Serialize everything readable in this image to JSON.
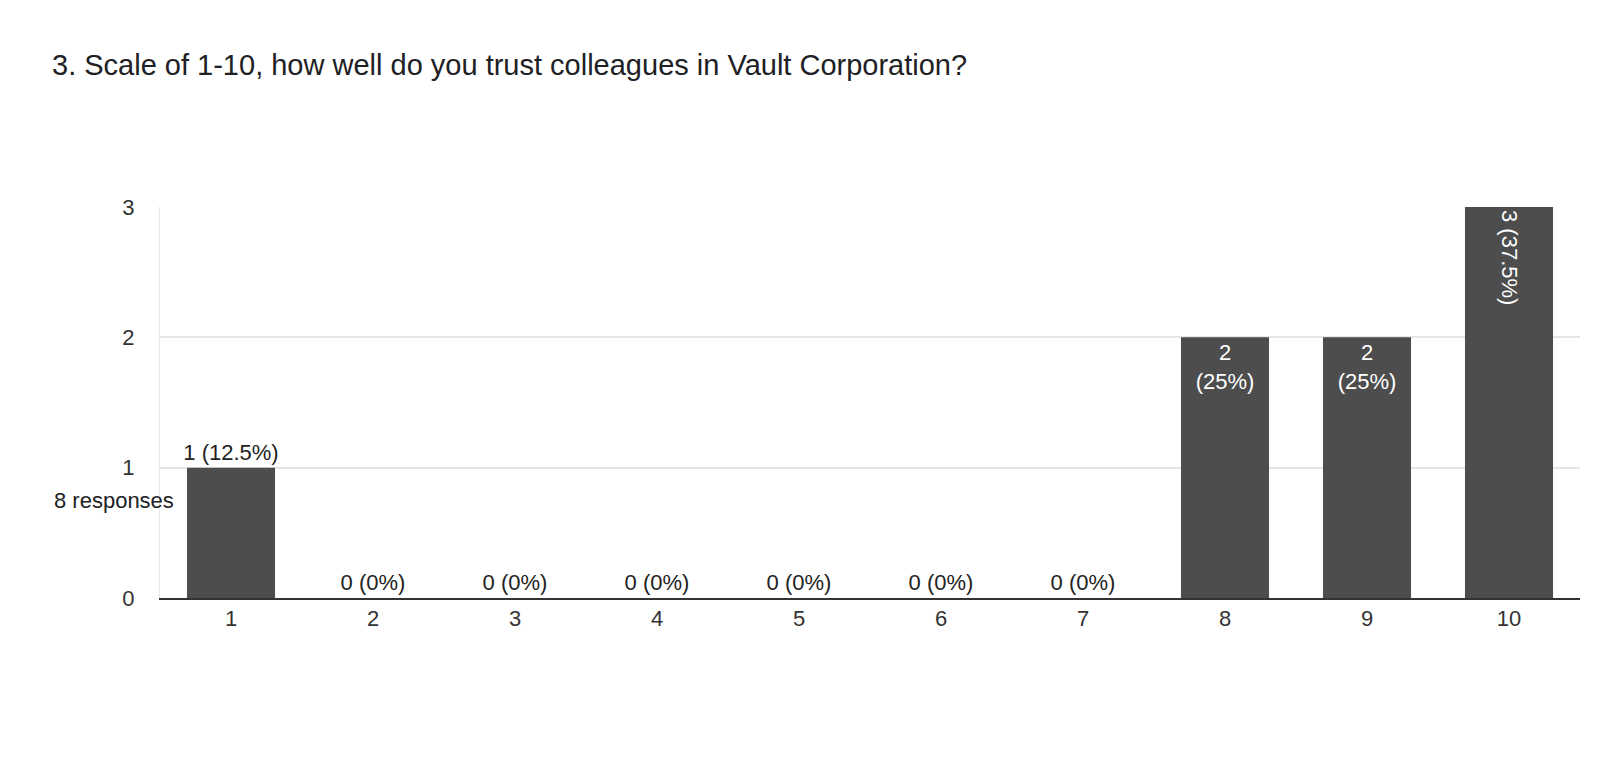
{
  "chart_data": {
    "type": "bar",
    "title": "3. Scale of 1-10, how well do you trust colleagues in Vault Corporation?",
    "subtitle": "8 responses",
    "categories": [
      "1",
      "2",
      "3",
      "4",
      "5",
      "6",
      "7",
      "8",
      "9",
      "10"
    ],
    "values": [
      1,
      0,
      0,
      0,
      0,
      0,
      0,
      2,
      2,
      3
    ],
    "value_labels": [
      "1 (12.5%)",
      "0 (0%)",
      "0 (0%)",
      "0 (0%)",
      "0 (0%)",
      "0 (0%)",
      "0 (0%)",
      "2 (25%)",
      "2 (25%)",
      "3 (37.5%)"
    ],
    "color": "#4d4d4d",
    "ylim": [
      0,
      3
    ],
    "yticks": [
      0,
      1,
      2,
      3
    ],
    "grid": true,
    "data_labels": true
  }
}
